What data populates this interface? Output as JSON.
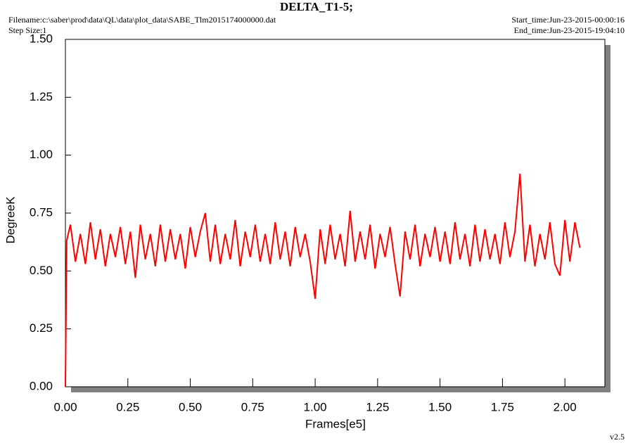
{
  "chart_data": {
    "type": "line",
    "title": "DELTA_T1-5;",
    "filename": "Filename:c:\\saber\\prod\\data\\QL\\data\\plot_data\\SABE_Tlm2015174000000.dat",
    "step_size": "Step Size:1",
    "start_time": "Start_time:Jun-23-2015-00:00:16",
    "end_time": "End_time:Jun-23-2015-19:04:10",
    "version": "v2.5",
    "xlabel": "Frames[e5]",
    "ylabel": "DegreeK",
    "xlim": [
      0,
      2.16
    ],
    "ylim": [
      0,
      1.5
    ],
    "xticks": [
      {
        "value": 0,
        "label": "0.00"
      },
      {
        "value": 0.25,
        "label": "0.25"
      },
      {
        "value": 0.5,
        "label": "0.50"
      },
      {
        "value": 0.75,
        "label": "0.75"
      },
      {
        "value": 1,
        "label": "1.00"
      },
      {
        "value": 1.25,
        "label": "1.25"
      },
      {
        "value": 1.5,
        "label": "1.50"
      },
      {
        "value": 1.75,
        "label": "1.75"
      },
      {
        "value": 2,
        "label": "2.00"
      }
    ],
    "yticks": [
      {
        "value": 0,
        "label": "0.00"
      },
      {
        "value": 0.25,
        "label": "0.25"
      },
      {
        "value": 0.5,
        "label": "0.50"
      },
      {
        "value": 0.75,
        "label": "0.75"
      },
      {
        "value": 1,
        "label": "1.00"
      },
      {
        "value": 1.25,
        "label": "1.25"
      },
      {
        "value": 1.5,
        "label": "1.50"
      }
    ],
    "x": [
      0,
      0.005,
      0.02,
      0.04,
      0.06,
      0.08,
      0.1,
      0.12,
      0.14,
      0.16,
      0.18,
      0.2,
      0.22,
      0.24,
      0.26,
      0.28,
      0.3,
      0.32,
      0.34,
      0.36,
      0.38,
      0.4,
      0.42,
      0.44,
      0.46,
      0.48,
      0.5,
      0.52,
      0.54,
      0.56,
      0.58,
      0.6,
      0.62,
      0.64,
      0.66,
      0.68,
      0.7,
      0.72,
      0.74,
      0.76,
      0.78,
      0.8,
      0.82,
      0.84,
      0.86,
      0.88,
      0.9,
      0.92,
      0.94,
      0.96,
      0.98,
      1.0,
      1.02,
      1.04,
      1.06,
      1.08,
      1.1,
      1.12,
      1.14,
      1.16,
      1.18,
      1.2,
      1.22,
      1.24,
      1.26,
      1.28,
      1.3,
      1.32,
      1.34,
      1.36,
      1.38,
      1.4,
      1.42,
      1.44,
      1.46,
      1.48,
      1.5,
      1.52,
      1.54,
      1.56,
      1.58,
      1.6,
      1.62,
      1.64,
      1.66,
      1.68,
      1.7,
      1.72,
      1.74,
      1.76,
      1.78,
      1.8,
      1.82,
      1.84,
      1.86,
      1.88,
      1.9,
      1.92,
      1.94,
      1.96,
      1.98,
      2.0,
      2.02,
      2.04,
      2.06
    ],
    "series": [
      {
        "color": "#ff0000",
        "values": [
          0,
          0.63,
          0.7,
          0.54,
          0.66,
          0.53,
          0.71,
          0.55,
          0.68,
          0.52,
          0.66,
          0.56,
          0.69,
          0.53,
          0.67,
          0.47,
          0.7,
          0.55,
          0.66,
          0.52,
          0.7,
          0.54,
          0.68,
          0.55,
          0.66,
          0.51,
          0.69,
          0.56,
          0.67,
          0.75,
          0.54,
          0.7,
          0.53,
          0.66,
          0.55,
          0.72,
          0.52,
          0.67,
          0.56,
          0.7,
          0.54,
          0.66,
          0.53,
          0.71,
          0.55,
          0.67,
          0.52,
          0.69,
          0.56,
          0.66,
          0.54,
          0.38,
          0.68,
          0.53,
          0.7,
          0.55,
          0.66,
          0.52,
          0.76,
          0.54,
          0.67,
          0.55,
          0.7,
          0.51,
          0.66,
          0.56,
          0.69,
          0.53,
          0.39,
          0.67,
          0.55,
          0.7,
          0.52,
          0.66,
          0.56,
          0.69,
          0.54,
          0.67,
          0.53,
          0.71,
          0.55,
          0.66,
          0.52,
          0.7,
          0.54,
          0.68,
          0.55,
          0.66,
          0.53,
          0.71,
          0.56,
          0.67,
          0.92,
          0.54,
          0.7,
          0.52,
          0.66,
          0.55,
          0.71,
          0.53,
          0.48,
          0.72,
          0.54,
          0.71,
          0.6
        ]
      }
    ]
  }
}
